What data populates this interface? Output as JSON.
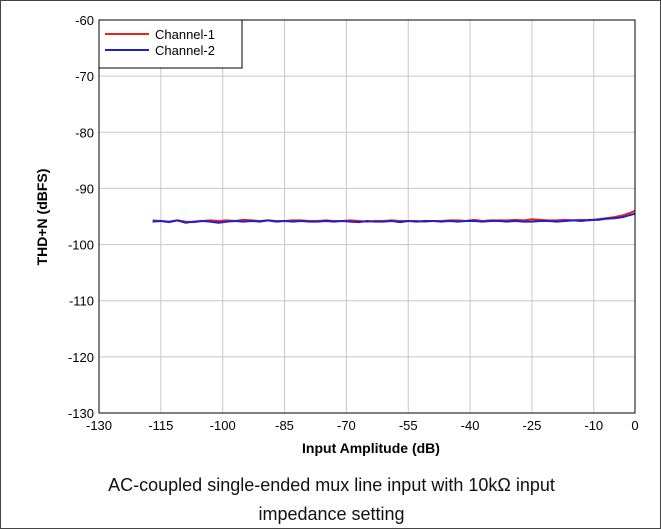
{
  "chart_data": {
    "type": "line",
    "title": "",
    "xlabel": "Input Amplitude (dB)",
    "ylabel": "THD+N (dBFS)",
    "xlim": [
      -130,
      0
    ],
    "ylim": [
      -130,
      -60
    ],
    "xticks": [
      -130,
      -115,
      -100,
      -85,
      -70,
      -55,
      -40,
      -25,
      -10,
      0
    ],
    "yticks": [
      -60,
      -70,
      -80,
      -90,
      -100,
      -110,
      -120,
      -130
    ],
    "grid": true,
    "legend": "top-left",
    "series": [
      {
        "name": "Channel-1",
        "color": "#e8211a",
        "x": [
          -117,
          -115,
          -113,
          -111,
          -109,
          -107,
          -105,
          -103,
          -101,
          -99,
          -97,
          -95,
          -93,
          -91,
          -89,
          -87,
          -85,
          -83,
          -81,
          -79,
          -77,
          -75,
          -73,
          -71,
          -69,
          -67,
          -65,
          -63,
          -61,
          -59,
          -57,
          -55,
          -53,
          -51,
          -49,
          -47,
          -45,
          -43,
          -41,
          -39,
          -37,
          -35,
          -33,
          -31,
          -29,
          -27,
          -25,
          -23,
          -21,
          -19,
          -17,
          -15,
          -13,
          -11,
          -9,
          -7,
          -5,
          -3,
          -1,
          0
        ],
        "y": [
          -95.7,
          -95.8,
          -95.9,
          -95.7,
          -95.9,
          -96.0,
          -95.8,
          -95.7,
          -95.8,
          -95.7,
          -95.8,
          -95.6,
          -95.7,
          -95.8,
          -95.7,
          -95.8,
          -95.8,
          -95.7,
          -95.7,
          -95.8,
          -95.8,
          -95.7,
          -95.8,
          -95.8,
          -95.7,
          -95.8,
          -95.9,
          -95.8,
          -95.8,
          -95.7,
          -95.8,
          -95.8,
          -95.8,
          -95.9,
          -95.8,
          -95.8,
          -95.7,
          -95.7,
          -95.8,
          -95.6,
          -95.8,
          -95.7,
          -95.7,
          -95.7,
          -95.6,
          -95.7,
          -95.5,
          -95.6,
          -95.7,
          -95.7,
          -95.6,
          -95.7,
          -95.6,
          -95.7,
          -95.5,
          -95.3,
          -95.1,
          -94.8,
          -94.3,
          -94.0
        ]
      },
      {
        "name": "Channel-2",
        "color": "#1f1fcc",
        "x": [
          -117,
          -115,
          -113,
          -111,
          -109,
          -107,
          -105,
          -103,
          -101,
          -99,
          -97,
          -95,
          -93,
          -91,
          -89,
          -87,
          -85,
          -83,
          -81,
          -79,
          -77,
          -75,
          -73,
          -71,
          -69,
          -67,
          -65,
          -63,
          -61,
          -59,
          -57,
          -55,
          -53,
          -51,
          -49,
          -47,
          -45,
          -43,
          -41,
          -39,
          -37,
          -35,
          -33,
          -31,
          -29,
          -27,
          -25,
          -23,
          -21,
          -19,
          -17,
          -15,
          -13,
          -11,
          -9,
          -7,
          -5,
          -3,
          -1,
          0
        ],
        "y": [
          -95.9,
          -95.8,
          -96.0,
          -95.7,
          -96.1,
          -95.9,
          -95.8,
          -95.9,
          -96.1,
          -95.9,
          -95.8,
          -95.9,
          -95.8,
          -95.9,
          -95.7,
          -95.9,
          -95.8,
          -95.9,
          -95.8,
          -95.9,
          -95.9,
          -95.8,
          -95.9,
          -95.8,
          -95.9,
          -96.0,
          -95.8,
          -95.9,
          -95.9,
          -95.8,
          -96.0,
          -95.8,
          -95.9,
          -95.8,
          -95.8,
          -95.9,
          -95.8,
          -95.9,
          -95.8,
          -95.8,
          -95.9,
          -95.8,
          -95.8,
          -95.9,
          -95.8,
          -95.9,
          -95.9,
          -95.8,
          -95.8,
          -95.9,
          -95.8,
          -95.7,
          -95.8,
          -95.6,
          -95.6,
          -95.4,
          -95.3,
          -95.1,
          -94.7,
          -94.5
        ]
      }
    ]
  },
  "caption": {
    "line1": "AC-coupled single-ended mux line input with 10kΩ input",
    "line2": "impedance setting"
  }
}
